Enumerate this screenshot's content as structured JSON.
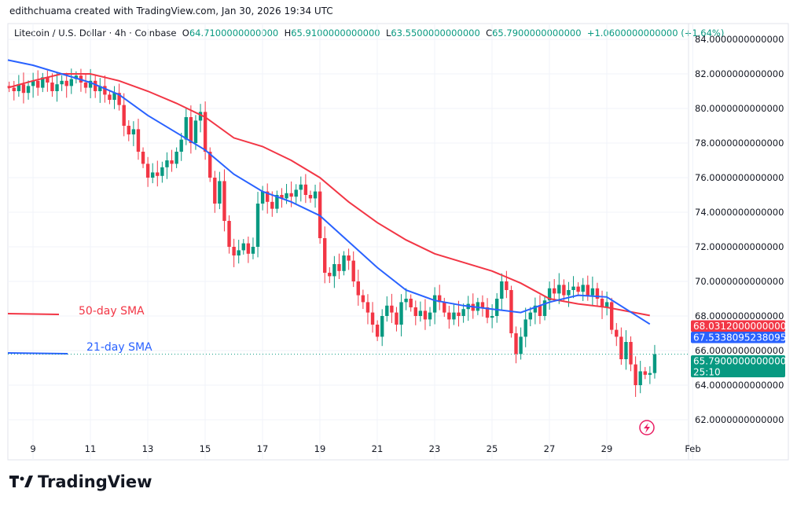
{
  "credit": "edithchuama created with TradingView.com, Jan 30, 2026 19:34 UTC",
  "legend": {
    "symbol": "Litecoin / U.S. Dollar · 4h · Coinbase",
    "o_label": "O",
    "o": "64.7100000000000",
    "h_label": "H",
    "h": "65.9100000000000",
    "l_label": "L",
    "l": "63.5500000000000",
    "c_label": "C",
    "c": "65.7900000000000",
    "change": "+1.0600000000000 (+1.64%)"
  },
  "logo": "TradingView",
  "colors": {
    "up": "#089981",
    "down": "#f23645",
    "sma50": "#f23645",
    "sma21": "#2962ff"
  },
  "chart_data": {
    "type": "candlestick",
    "interval": "4h",
    "ylim": [
      61,
      85
    ],
    "y_ticks": [
      "62.0000000000000",
      "64.0000000000000",
      "66.0000000000000",
      "68.0000000000000",
      "70.0000000000000",
      "72.0000000000000",
      "74.0000000000000",
      "76.0000000000000",
      "78.0000000000000",
      "80.0000000000000",
      "82.0000000000000",
      "84.0000000000000"
    ],
    "x_ticks": [
      "9",
      "11",
      "13",
      "15",
      "17",
      "19",
      "21",
      "23",
      "25",
      "27",
      "29",
      "Feb"
    ],
    "x_tick_days": [
      9,
      11,
      13,
      15,
      17,
      19,
      21,
      23,
      25,
      27,
      29,
      32
    ],
    "first_candle_day": 8.17,
    "closes": [
      81.2,
      81.0,
      81.4,
      80.9,
      81.3,
      81.6,
      81.2,
      81.8,
      81.5,
      81.0,
      81.4,
      81.6,
      81.3,
      81.7,
      81.9,
      81.5,
      81.2,
      81.6,
      81.0,
      81.3,
      80.8,
      80.5,
      80.9,
      80.2,
      79.0,
      78.5,
      78.8,
      77.5,
      76.8,
      76.0,
      76.3,
      76.1,
      76.6,
      77.0,
      76.8,
      77.5,
      78.2,
      79.5,
      78.0,
      79.3,
      79.8,
      77.5,
      76.0,
      74.5,
      75.8,
      73.5,
      72.0,
      71.5,
      71.8,
      72.2,
      71.6,
      72.0,
      74.5,
      75.2,
      74.6,
      74.2,
      75.0,
      74.8,
      75.1,
      74.9,
      75.3,
      75.6,
      75.0,
      74.8,
      75.2,
      72.5,
      70.5,
      70.3,
      71.0,
      70.6,
      71.5,
      71.2,
      70.0,
      69.2,
      68.8,
      68.2,
      67.5,
      66.8,
      68.0,
      68.6,
      68.2,
      67.5,
      68.8,
      69.0,
      68.5,
      68.0,
      68.3,
      67.8,
      68.2,
      69.2,
      68.8,
      68.2,
      67.8,
      68.2,
      68.0,
      68.4,
      68.7,
      68.3,
      68.8,
      68.5,
      67.9,
      68.0,
      69.0,
      70.0,
      69.5,
      67.0,
      65.8,
      66.8,
      67.8,
      68.2,
      68.6,
      68.0,
      68.9,
      69.6,
      69.3,
      69.8,
      69.2,
      69.5,
      69.7,
      69.4,
      69.8,
      69.2,
      69.6,
      69.0,
      68.5,
      68.8,
      67.2,
      66.8,
      65.5,
      66.5,
      65.2,
      64.0,
      64.8,
      64.6,
      64.7,
      65.79
    ],
    "first_open": 81.3,
    "series": [
      {
        "name": "50-day SMA",
        "color": "#f23645",
        "days": [
          8,
          9,
          10,
          11,
          12,
          13,
          14,
          15,
          16,
          17,
          18,
          19,
          20,
          21,
          22,
          23,
          24,
          25,
          26,
          27,
          28,
          29,
          30.5
        ],
        "values": [
          81.2,
          81.6,
          82.0,
          82.0,
          81.6,
          81.0,
          80.3,
          79.5,
          78.3,
          77.8,
          77.0,
          76.0,
          74.6,
          73.4,
          72.4,
          71.6,
          71.1,
          70.6,
          69.9,
          69.0,
          68.7,
          68.5,
          68.03
        ]
      },
      {
        "name": "21-day SMA",
        "color": "#2962ff",
        "days": [
          8,
          9,
          10,
          11,
          12,
          13,
          14,
          15,
          16,
          17,
          18,
          19,
          20,
          21,
          22,
          23,
          24,
          25,
          26,
          27,
          28,
          29,
          30.5
        ],
        "values": [
          82.8,
          82.5,
          82.0,
          81.5,
          80.8,
          79.6,
          78.6,
          77.6,
          76.2,
          75.2,
          74.6,
          73.8,
          72.3,
          70.8,
          69.5,
          68.9,
          68.6,
          68.4,
          68.2,
          68.8,
          69.2,
          69.1,
          67.53
        ]
      }
    ],
    "price_labels": {
      "sma50": "68.0312000000000",
      "sma21": "67.5338095238095",
      "last": "65.7900000000000",
      "countdown": "25:10"
    }
  }
}
